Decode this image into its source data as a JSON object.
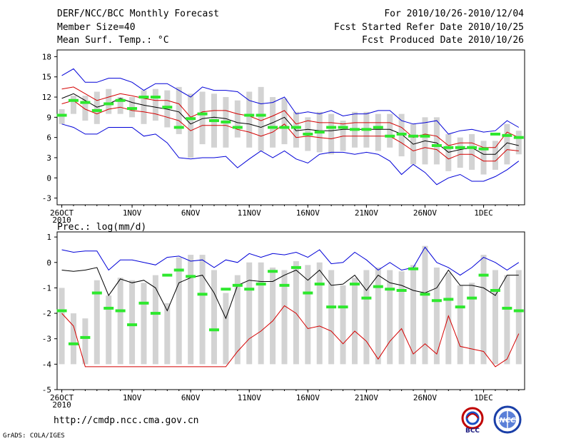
{
  "header": {
    "title": "DERF/NCC/BCC Monthly Forecast",
    "member_size": "Member Size=40",
    "variable": "Mean Surf. Temp.: °C",
    "period": "For 2010/10/26-2010/12/04",
    "started": "Fcst Started Refer Date 2010/10/25",
    "produced": "Fcst Produced Date 2010/10/26"
  },
  "footer": {
    "url": "http://cmdp.ncc.cma.gov.cn",
    "grads": "GrADS: COLA/IGES",
    "logo_left_text": "BCC",
    "logo_right_text": "NCC"
  },
  "colors": {
    "bars": "#d3d3d3",
    "median": "#2ee82e",
    "mean": "#000000",
    "spread": "#d40000",
    "extreme": "#0000d8"
  },
  "chart_data": [
    {
      "type": "line",
      "title": "Mean Surf. Temp.: °C",
      "x_tick_labels": [
        "26OCT",
        "1NOV",
        "6NOV",
        "11NOV",
        "16NOV",
        "21NOV",
        "26NOV",
        "1DEC"
      ],
      "x_tick_days": [
        1,
        7,
        12,
        17,
        22,
        27,
        32,
        37
      ],
      "x_sub_label": "2010",
      "ylim": [
        -4,
        19
      ],
      "y_ticks": [
        -3,
        0,
        3,
        6,
        9,
        12,
        15,
        18
      ],
      "days": [
        1,
        2,
        3,
        4,
        5,
        6,
        7,
        8,
        9,
        10,
        11,
        12,
        13,
        14,
        15,
        16,
        17,
        18,
        19,
        20,
        21,
        22,
        23,
        24,
        25,
        26,
        27,
        28,
        29,
        30,
        31,
        32,
        33,
        34,
        35,
        36,
        37,
        38,
        39,
        40
      ],
      "max": [
        15.2,
        16.2,
        14.2,
        14.2,
        14.8,
        14.8,
        14.2,
        13.0,
        14.0,
        14.0,
        13.0,
        12.0,
        13.5,
        13.0,
        13.0,
        12.8,
        11.5,
        11.0,
        11.2,
        12.0,
        9.5,
        9.8,
        9.5,
        10.0,
        9.2,
        9.5,
        9.5,
        10.0,
        10.0,
        8.5,
        8.0,
        8.2,
        8.5,
        6.5,
        7.0,
        7.2,
        6.8,
        7.0,
        8.5,
        7.5
      ],
      "upper": [
        13.2,
        13.5,
        12.5,
        11.5,
        12.0,
        12.5,
        12.2,
        11.8,
        11.5,
        11.5,
        11.0,
        9.0,
        9.8,
        10.0,
        10.0,
        9.5,
        9.2,
        8.5,
        9.2,
        10.0,
        8.0,
        8.5,
        8.2,
        8.2,
        8.0,
        8.2,
        8.2,
        8.2,
        8.2,
        7.5,
        6.0,
        6.5,
        6.2,
        4.8,
        5.2,
        5.2,
        4.5,
        4.5,
        6.8,
        6.0
      ],
      "mean": [
        11.8,
        12.5,
        11.5,
        10.5,
        11.0,
        11.8,
        11.2,
        10.8,
        10.5,
        10.2,
        9.8,
        8.0,
        8.8,
        9.0,
        8.8,
        8.2,
        8.0,
        7.5,
        8.2,
        9.0,
        7.0,
        7.2,
        7.0,
        7.0,
        7.2,
        7.2,
        7.2,
        7.2,
        7.2,
        6.5,
        5.0,
        5.5,
        5.2,
        3.8,
        4.2,
        4.5,
        3.5,
        3.5,
        5.2,
        4.8
      ],
      "lower": [
        11.0,
        11.5,
        10.2,
        9.5,
        10.2,
        10.5,
        10.0,
        9.8,
        9.5,
        9.0,
        8.5,
        7.0,
        7.8,
        7.8,
        7.8,
        7.2,
        6.8,
        6.2,
        6.8,
        8.0,
        6.0,
        6.2,
        6.0,
        5.8,
        6.2,
        6.2,
        6.2,
        6.2,
        6.2,
        5.2,
        4.0,
        4.5,
        4.2,
        2.8,
        3.5,
        3.5,
        2.5,
        2.5,
        4.2,
        4.0
      ],
      "min": [
        8.0,
        7.5,
        6.5,
        6.5,
        7.5,
        7.5,
        7.5,
        6.2,
        6.5,
        5.2,
        3.0,
        2.8,
        3.0,
        3.0,
        3.2,
        1.5,
        2.8,
        4.0,
        3.0,
        4.0,
        2.8,
        2.2,
        3.5,
        3.8,
        3.8,
        3.5,
        3.8,
        3.5,
        2.5,
        0.5,
        2.0,
        0.8,
        -1.0,
        0.0,
        0.5,
        -0.5,
        -0.5,
        0.2,
        1.2,
        2.5
      ],
      "bar_top": [
        10.2,
        12.2,
        12.2,
        12.8,
        13.2,
        12.0,
        12.0,
        13.0,
        13.2,
        13.0,
        13.5,
        12.5,
        12.8,
        12.5,
        12.0,
        11.5,
        12.8,
        13.5,
        12.0,
        11.8,
        9.8,
        9.0,
        9.8,
        9.5,
        8.5,
        9.8,
        9.8,
        9.5,
        9.5,
        9.5,
        8.0,
        9.0,
        9.0,
        6.5,
        6.0,
        6.5,
        5.5,
        5.5,
        8.0,
        7.0
      ],
      "bar_bottom": [
        8.0,
        9.5,
        8.5,
        8.0,
        9.5,
        9.5,
        9.0,
        8.0,
        8.5,
        7.5,
        6.5,
        3.0,
        5.0,
        4.5,
        4.5,
        6.0,
        4.5,
        4.0,
        4.5,
        5.0,
        4.5,
        4.0,
        3.8,
        3.5,
        4.0,
        4.5,
        4.5,
        4.0,
        4.5,
        3.2,
        2.0,
        2.0,
        2.0,
        1.0,
        1.5,
        1.2,
        0.5,
        1.2,
        2.0,
        3.5
      ],
      "median": [
        9.3,
        11.5,
        11.2,
        10.0,
        11.0,
        11.5,
        10.3,
        12.0,
        12.0,
        10.5,
        7.5,
        8.8,
        9.5,
        8.5,
        8.3,
        7.5,
        9.3,
        9.3,
        7.5,
        7.5,
        7.5,
        6.5,
        6.8,
        7.5,
        7.5,
        7.2,
        7.2,
        7.5,
        6.2,
        6.5,
        6.2,
        6.2,
        4.8,
        4.5,
        4.5,
        4.5,
        4.3,
        6.5,
        6.3,
        6.0
      ]
    },
    {
      "type": "line",
      "title": "Prec.: log(mm/d)",
      "x_tick_labels": [
        "26OCT",
        "1NOV",
        "6NOV",
        "11NOV",
        "16NOV",
        "21NOV",
        "26NOV",
        "1DEC"
      ],
      "x_tick_days": [
        1,
        7,
        12,
        17,
        22,
        27,
        32,
        37
      ],
      "x_sub_label": "2010",
      "ylim": [
        -5,
        1.2
      ],
      "y_ticks": [
        -5,
        -4,
        -3,
        -2,
        -1,
        0,
        1
      ],
      "days": [
        1,
        2,
        3,
        4,
        5,
        6,
        7,
        8,
        9,
        10,
        11,
        12,
        13,
        14,
        15,
        16,
        17,
        18,
        19,
        20,
        21,
        22,
        23,
        24,
        25,
        26,
        27,
        28,
        29,
        30,
        31,
        32,
        33,
        34,
        35,
        36,
        37,
        38,
        39,
        40
      ],
      "max": [
        0.5,
        0.4,
        0.45,
        0.45,
        -0.3,
        0.1,
        0.1,
        0.0,
        -0.1,
        0.2,
        0.25,
        0.05,
        0.1,
        -0.2,
        0.1,
        0.0,
        0.35,
        0.2,
        0.35,
        0.3,
        0.4,
        0.2,
        0.5,
        -0.05,
        0.0,
        0.4,
        0.1,
        -0.3,
        0.0,
        -0.3,
        -0.2,
        0.6,
        0.0,
        -0.2,
        -0.5,
        -0.2,
        0.2,
        0.0,
        -0.3,
        0.0
      ],
      "mean": [
        -0.3,
        -0.35,
        -0.3,
        -0.2,
        -1.3,
        -0.65,
        -0.8,
        -0.7,
        -1.0,
        -1.9,
        -0.8,
        -0.6,
        -0.5,
        -1.2,
        -2.2,
        -0.9,
        -0.7,
        -0.75,
        -0.75,
        -0.5,
        -0.3,
        -0.7,
        -0.3,
        -0.9,
        -0.85,
        -0.5,
        -1.1,
        -0.5,
        -0.8,
        -0.9,
        -1.1,
        -1.2,
        -1.0,
        -0.3,
        -0.9,
        -0.9,
        -1.0,
        -1.3,
        -0.5,
        -0.5
      ],
      "lower": [
        -2.0,
        -2.5,
        -4.1,
        -4.1,
        -4.1,
        -4.1,
        -4.1,
        -4.1,
        -4.1,
        -4.1,
        -4.1,
        -4.1,
        -4.1,
        -4.1,
        -4.1,
        -3.5,
        -3.0,
        -2.7,
        -2.3,
        -1.7,
        -2.0,
        -2.6,
        -2.5,
        -2.7,
        -3.2,
        -2.7,
        -3.1,
        -3.8,
        -3.1,
        -2.6,
        -3.6,
        -3.2,
        -3.6,
        -2.1,
        -3.3,
        -3.4,
        -3.5,
        -4.1,
        -3.8,
        -2.8
      ],
      "bar_top": [
        -1.0,
        -2.0,
        -2.2,
        -0.7,
        -1.3,
        -0.6,
        -0.7,
        -0.8,
        -0.5,
        -1.6,
        0.2,
        0.3,
        0.3,
        -0.3,
        -1.2,
        -0.5,
        0.0,
        0.0,
        -0.2,
        -0.3,
        0.05,
        -0.1,
        0.0,
        -0.3,
        -0.9,
        -0.6,
        -0.3,
        -0.2,
        -0.3,
        -0.35,
        -0.1,
        0.65,
        -0.2,
        -0.4,
        -0.9,
        -0.8,
        0.3,
        -0.3,
        -0.5,
        -0.3
      ],
      "bar_bottom": [
        -4.0,
        -4.0,
        -4.0,
        -4.0,
        -4.0,
        -4.0,
        -4.0,
        -4.0,
        -4.0,
        -4.0,
        -4.0,
        -4.0,
        -4.0,
        -4.0,
        -4.0,
        -4.0,
        -4.0,
        -4.0,
        -4.0,
        -4.0,
        -4.0,
        -4.0,
        -4.0,
        -4.0,
        -4.0,
        -4.0,
        -4.0,
        -4.0,
        -4.0,
        -4.0,
        -4.0,
        -4.0,
        -4.0,
        -4.0,
        -4.0,
        -4.0,
        -4.0,
        -4.0,
        -4.0,
        -4.0
      ],
      "median": [
        -1.9,
        -3.2,
        -2.95,
        -1.2,
        -1.8,
        -1.9,
        -2.45,
        -1.6,
        -2.0,
        -0.5,
        -0.3,
        -0.55,
        -1.25,
        -2.65,
        -1.05,
        -0.9,
        -1.05,
        -0.85,
        -0.35,
        -0.9,
        -0.2,
        -1.2,
        -0.85,
        -1.75,
        -1.75,
        -0.85,
        -1.4,
        -0.95,
        -1.05,
        -1.1,
        -0.25,
        -1.25,
        -1.5,
        -1.45,
        -1.75,
        -1.4,
        -0.5,
        -1.1,
        -1.8,
        -1.9
      ]
    }
  ]
}
